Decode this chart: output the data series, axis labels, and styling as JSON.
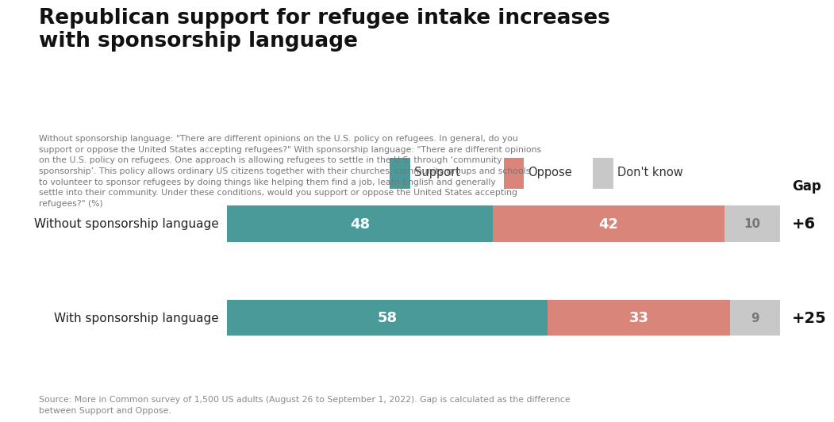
{
  "title": "Republican support for refugee intake increases\nwith sponsorship language",
  "subtitle": "Without sponsorship language: \"There are different opinions on the U.S. policy on refugees. In general, do you\nsupport or oppose the United States accepting refugees?\" With sponsorship language: \"There are different opinions\non the U.S. policy on refugees. One approach is allowing refugees to settle in the U.S. through ‘community\nsponsorship’. This policy allows ordinary US citizens together with their churches, community groups and schools\nto volunteer to sponsor refugees by doing things like helping them find a job, learn English and generally\nsettle into their community. Under these conditions, would you support or oppose the United States accepting\nrefugees?\" (%)",
  "footnote": "Source: More in Common survey of 1,500 US adults (August 26 to September 1, 2022). Gap is calculated as the difference\nbetween Support and Oppose.",
  "categories": [
    "Without sponsorship language",
    "With sponsorship language"
  ],
  "support": [
    48,
    58
  ],
  "oppose": [
    42,
    33
  ],
  "dont_know": [
    10,
    9
  ],
  "gap": [
    "+6",
    "+25"
  ],
  "color_support": "#4a9a9a",
  "color_oppose": "#d9857a",
  "color_dont_know": "#c8c8c8",
  "background_color": "#ffffff"
}
